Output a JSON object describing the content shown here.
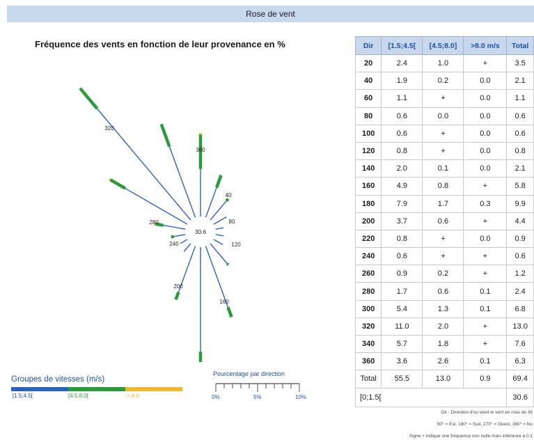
{
  "header": {
    "title": "Rose de vent"
  },
  "chart_data": {
    "type": "wind-rose",
    "title": "Fréquence des vents en fonction de leur provenance en %",
    "center_value": "30.6",
    "shown_direction_labels": [
      "320",
      "360",
      "40",
      "80",
      "120",
      "160",
      "200",
      "240",
      "280"
    ],
    "speed_groups": [
      {
        "name": "[1.5;4.5[",
        "color": "#2a64b8"
      },
      {
        "name": "[4.5;8.0[",
        "color": "#2a9a3a"
      },
      {
        "name": "> 8.0",
        "color": "#f0b830"
      }
    ],
    "legend_title": "Groupes de vitesses (m/s)",
    "scale": {
      "title": "Pourcentage par direction",
      "ticks": [
        "0%",
        "5%",
        "10%"
      ],
      "max": 10
    },
    "directions": [
      20,
      40,
      60,
      80,
      100,
      120,
      140,
      160,
      180,
      200,
      220,
      240,
      260,
      280,
      300,
      320,
      340,
      360
    ],
    "series": [
      {
        "name": "[1.5;4.5[",
        "values": [
          2.4,
          1.9,
          1.1,
          0.6,
          0.6,
          0.8,
          2.0,
          4.9,
          7.9,
          3.7,
          0.8,
          0.6,
          0.9,
          1.7,
          5.4,
          11.0,
          5.7,
          3.6
        ]
      },
      {
        "name": "[4.5;8.0[",
        "values": [
          1.0,
          0.2,
          0.0,
          0.0,
          0.0,
          0.0,
          0.1,
          0.8,
          1.7,
          0.6,
          0.0,
          0.0,
          0.2,
          0.6,
          1.3,
          2.0,
          1.8,
          2.6
        ]
      },
      {
        "name": ">8.0 m/s",
        "values": [
          0.0,
          0.0,
          0.0,
          0.0,
          0.0,
          0.0,
          0.0,
          0.0,
          0.3,
          0.0,
          0.0,
          0.0,
          0.0,
          0.1,
          0.1,
          0.0,
          0.0,
          0.1
        ]
      }
    ]
  },
  "table": {
    "headers": [
      "Dir",
      "[1.5;4.5[",
      "[4.5;8.0]",
      ">8.0 m/s",
      "Total"
    ],
    "rows": [
      [
        "20",
        "2.4",
        "1.0",
        "+",
        "3.5"
      ],
      [
        "40",
        "1.9",
        "0.2",
        "0.0",
        "2.1"
      ],
      [
        "60",
        "1.1",
        "+",
        "0.0",
        "1.1"
      ],
      [
        "80",
        "0.6",
        "0.0",
        "0.0",
        "0.6"
      ],
      [
        "100",
        "0.6",
        "+",
        "0.0",
        "0.6"
      ],
      [
        "120",
        "0.8",
        "+",
        "0.0",
        "0.8"
      ],
      [
        "140",
        "2.0",
        "0.1",
        "0.0",
        "2.1"
      ],
      [
        "160",
        "4.9",
        "0.8",
        "+",
        "5.8"
      ],
      [
        "180",
        "7.9",
        "1.7",
        "0.3",
        "9.9"
      ],
      [
        "200",
        "3.7",
        "0.6",
        "+",
        "4.4"
      ],
      [
        "220",
        "0.8",
        "+",
        "0.0",
        "0.9"
      ],
      [
        "240",
        "0.6",
        "+",
        "+",
        "0.6"
      ],
      [
        "260",
        "0.9",
        "0.2",
        "+",
        "1.2"
      ],
      [
        "280",
        "1.7",
        "0.6",
        "0.1",
        "2.4"
      ],
      [
        "300",
        "5.4",
        "1.3",
        "0.1",
        "6.8"
      ],
      [
        "320",
        "11.0",
        "2.0",
        "+",
        "13.0"
      ],
      [
        "340",
        "5.7",
        "1.8",
        "+",
        "7.6"
      ],
      [
        "360",
        "3.6",
        "2.6",
        "0.1",
        "6.3"
      ]
    ],
    "total_row": [
      "Total",
      "55.5",
      "13.0",
      "0.9",
      "69.4"
    ],
    "calm_row": {
      "label": "[0;1.5[",
      "total": "30.6"
    }
  },
  "notes": [
    "Dir : Direction d'où vient le vent en rose de 36",
    "90° = Est, 180° = Sud, 270° = Ouest, 360° = No",
    "Signe + indique une fréquence non nulle mais inférieure à 0.1"
  ]
}
